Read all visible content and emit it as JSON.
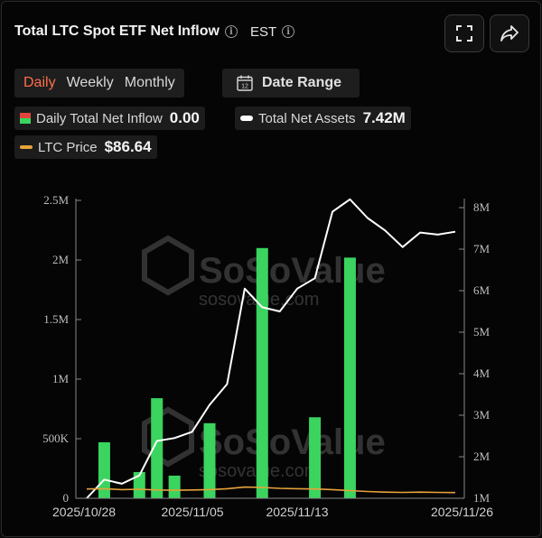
{
  "header": {
    "title": "Total LTC Spot ETF Net Inflow",
    "timezone": "EST"
  },
  "tabs": [
    "Daily",
    "Weekly",
    "Monthly"
  ],
  "active_tab": 0,
  "date_range_label": "Date Range",
  "calendar_day": "12",
  "legend": {
    "inflow_label": "Daily Total Net Inflow",
    "inflow_value": "0.00",
    "assets_label": "Total Net Assets",
    "assets_value": "7.42M",
    "price_label": "LTC Price",
    "price_value": "$86.64"
  },
  "colors": {
    "bar": "#3ad45e",
    "assets_line": "#ffffff",
    "price_line": "#e6a23c",
    "active_tab": "#ff6e4a"
  },
  "watermark": {
    "brand": "SoSoValue",
    "url": "sosovalue.com"
  },
  "chart_data": {
    "type": "bar",
    "x_labels": [
      "2025/10/28",
      "2025/11/05",
      "2025/11/13",
      "2025/11/26"
    ],
    "left_axis": {
      "ticks": [
        "0",
        "500K",
        "1M",
        "1.5M",
        "2M",
        "2.5M"
      ],
      "max": 2500000
    },
    "right_axis": {
      "ticks": [
        "1M",
        "2M",
        "3M",
        "4M",
        "5M",
        "6M",
        "7M",
        "8M"
      ],
      "min": 1000000,
      "max": 8000000
    },
    "bars": [
      {
        "index": 1,
        "value": 470000
      },
      {
        "index": 3,
        "value": 220000
      },
      {
        "index": 4,
        "value": 840000
      },
      {
        "index": 5,
        "value": 190000
      },
      {
        "index": 7,
        "value": 630000
      },
      {
        "index": 10,
        "value": 2100000
      },
      {
        "index": 13,
        "value": 680000
      },
      {
        "index": 15,
        "value": 2020000
      }
    ],
    "total_net_assets": [
      1.0,
      1.45,
      1.35,
      1.55,
      2.38,
      2.45,
      2.6,
      3.25,
      3.75,
      6.05,
      5.6,
      5.5,
      6.05,
      6.3,
      7.9,
      8.2,
      7.75,
      7.45,
      7.05,
      7.4,
      7.35,
      7.42
    ],
    "ltc_price": [
      98,
      99,
      96,
      97,
      95,
      94,
      95,
      96,
      99,
      104,
      103,
      100,
      99,
      98,
      96,
      93,
      90,
      88,
      87,
      88,
      87,
      86.64
    ],
    "price_range": [
      0,
      2500
    ],
    "points": 22
  }
}
